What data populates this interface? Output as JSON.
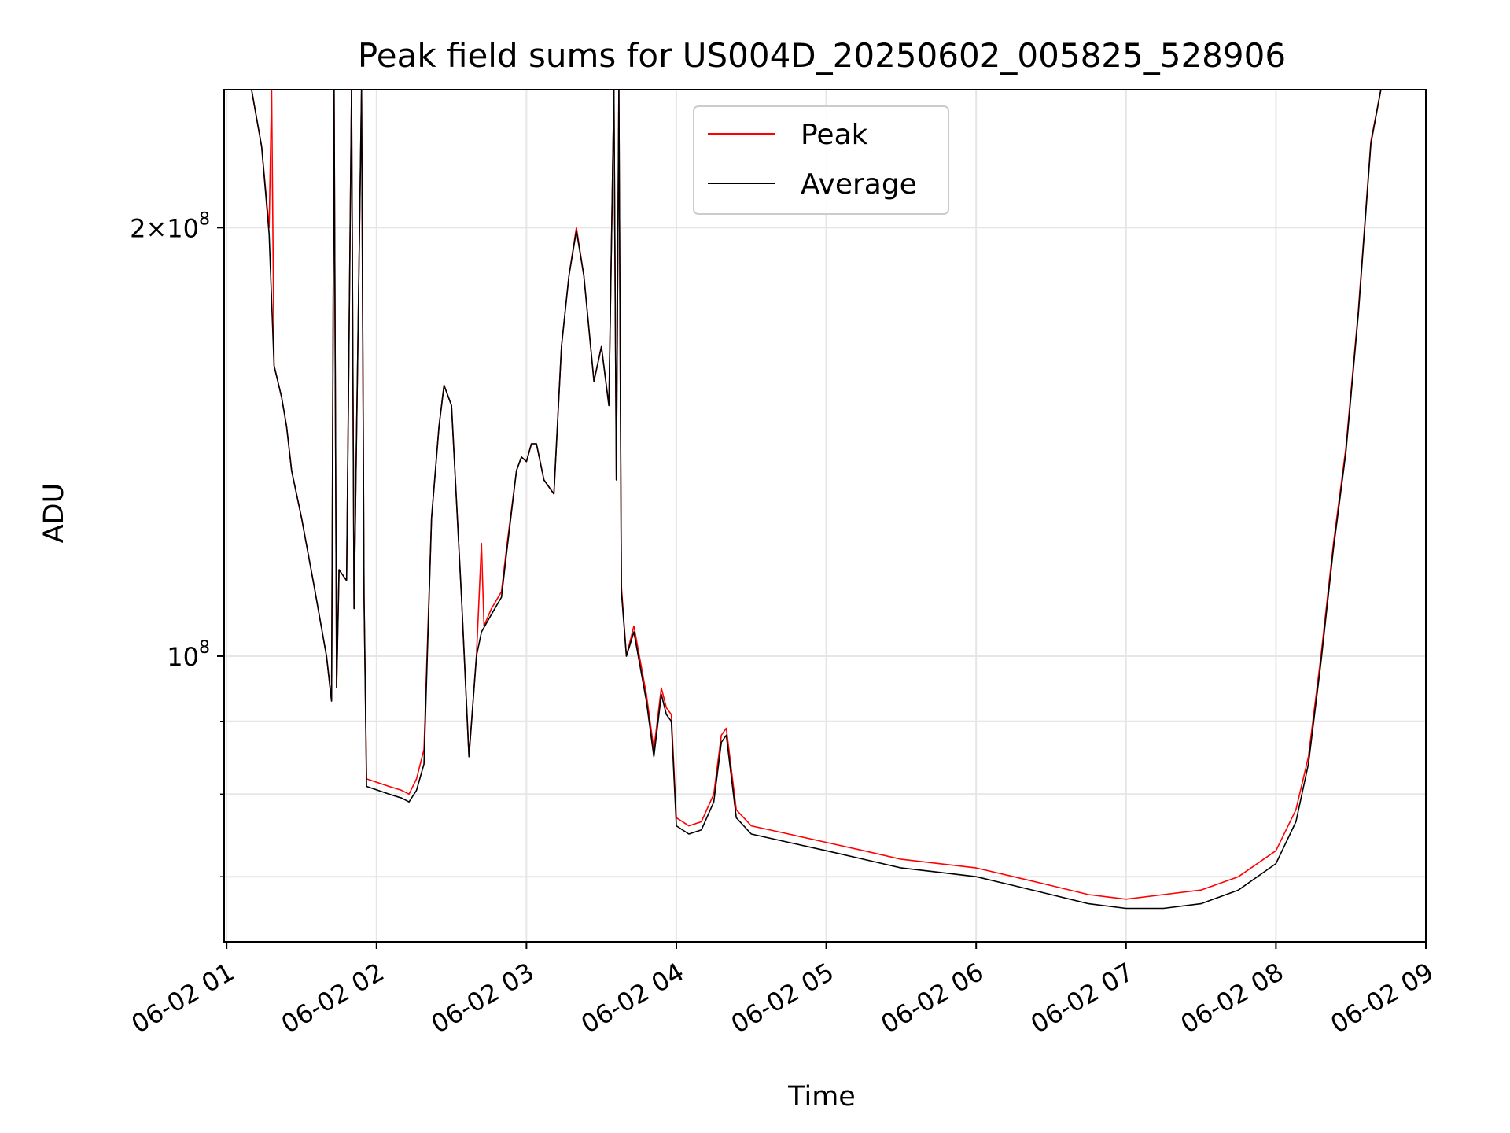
{
  "chart_data": {
    "type": "line",
    "title": "Peak field sums for US004D_20250602_005825_528906",
    "xlabel": "Time",
    "ylabel": "ADU",
    "x_scale": "time",
    "y_scale": "log",
    "xlim": [
      "2025-06-02 00:59",
      "2025-06-02 09:00"
    ],
    "ylim": [
      63000000,
      250000000
    ],
    "x_ticks": [
      "06-02 01",
      "06-02 02",
      "06-02 03",
      "06-02 04",
      "06-02 05",
      "06-02 06",
      "06-02 07",
      "06-02 08",
      "06-02 09"
    ],
    "y_ticks_major": [
      {
        "value": 200000000,
        "base": "2×10",
        "exp": "8"
      },
      {
        "value": 100000000,
        "base": "10",
        "exp": "8"
      }
    ],
    "y_ticks_minor": [
      90000000,
      80000000,
      70000000
    ],
    "grid": true,
    "legend": {
      "placement": "top-center",
      "entries": [
        "Peak",
        "Average"
      ]
    },
    "series": [
      {
        "name": "Peak",
        "color": "#ff0000",
        "points": [
          [
            "01:00",
            250000000
          ],
          [
            "01:10",
            250000000
          ],
          [
            "01:14",
            228000000
          ],
          [
            "01:17",
            200000000
          ],
          [
            "01:18",
            250000000
          ],
          [
            "01:19",
            160000000
          ],
          [
            "01:22",
            152000000
          ],
          [
            "01:24",
            145000000
          ],
          [
            "01:26",
            135000000
          ],
          [
            "01:30",
            125000000
          ],
          [
            "01:35",
            112000000
          ],
          [
            "01:40",
            100000000
          ],
          [
            "01:42",
            93000000
          ],
          [
            "01:43",
            250000000
          ],
          [
            "01:44",
            95000000
          ],
          [
            "01:45",
            115000000
          ],
          [
            "01:48",
            113000000
          ],
          [
            "01:50",
            250000000
          ],
          [
            "01:51",
            108000000
          ],
          [
            "01:54",
            250000000
          ],
          [
            "01:55",
            110000000
          ],
          [
            "01:56",
            82000000
          ],
          [
            "02:05",
            81000000
          ],
          [
            "02:10",
            80500000
          ],
          [
            "02:13",
            80000000
          ],
          [
            "02:16",
            82000000
          ],
          [
            "02:19",
            86000000
          ],
          [
            "02:22",
            125000000
          ],
          [
            "02:25",
            145000000
          ],
          [
            "02:27",
            155000000
          ],
          [
            "02:30",
            150000000
          ],
          [
            "02:34",
            110000000
          ],
          [
            "02:37",
            85000000
          ],
          [
            "02:40",
            100000000
          ],
          [
            "02:42",
            120000000
          ],
          [
            "02:43",
            105000000
          ],
          [
            "02:46",
            108000000
          ],
          [
            "02:50",
            111000000
          ],
          [
            "02:52",
            119000000
          ],
          [
            "02:56",
            135000000
          ],
          [
            "02:58",
            138000000
          ],
          [
            "03:00",
            137000000
          ],
          [
            "03:02",
            141000000
          ],
          [
            "03:04",
            141000000
          ],
          [
            "03:07",
            133000000
          ],
          [
            "03:11",
            130000000
          ],
          [
            "03:14",
            165000000
          ],
          [
            "03:17",
            185000000
          ],
          [
            "03:20",
            200000000
          ],
          [
            "03:23",
            185000000
          ],
          [
            "03:27",
            156000000
          ],
          [
            "03:30",
            165000000
          ],
          [
            "03:33",
            150000000
          ],
          [
            "03:35",
            250000000
          ],
          [
            "03:36",
            133000000
          ],
          [
            "03:37",
            250000000
          ],
          [
            "03:38",
            112000000
          ],
          [
            "03:40",
            100000000
          ],
          [
            "03:43",
            105000000
          ],
          [
            "03:48",
            94000000
          ],
          [
            "03:51",
            86000000
          ],
          [
            "03:54",
            95000000
          ],
          [
            "03:56",
            92000000
          ],
          [
            "03:58",
            91000000
          ],
          [
            "04:00",
            77000000
          ],
          [
            "04:05",
            76000000
          ],
          [
            "04:10",
            76500000
          ],
          [
            "04:15",
            80000000
          ],
          [
            "04:18",
            88000000
          ],
          [
            "04:20",
            89000000
          ],
          [
            "04:24",
            78000000
          ],
          [
            "04:30",
            76000000
          ],
          [
            "04:45",
            75000000
          ],
          [
            "05:00",
            74000000
          ],
          [
            "05:15",
            73000000
          ],
          [
            "05:30",
            72000000
          ],
          [
            "05:45",
            71500000
          ],
          [
            "06:00",
            71000000
          ],
          [
            "06:15",
            70000000
          ],
          [
            "06:30",
            69000000
          ],
          [
            "06:45",
            68000000
          ],
          [
            "07:00",
            67500000
          ],
          [
            "07:15",
            68000000
          ],
          [
            "07:30",
            68500000
          ],
          [
            "07:45",
            70000000
          ],
          [
            "08:00",
            73000000
          ],
          [
            "08:08",
            78000000
          ],
          [
            "08:13",
            85000000
          ],
          [
            "08:18",
            100000000
          ],
          [
            "08:23",
            120000000
          ],
          [
            "08:28",
            140000000
          ],
          [
            "08:33",
            175000000
          ],
          [
            "08:38",
            230000000
          ],
          [
            "08:42",
            250000000
          ],
          [
            "09:00",
            250000000
          ]
        ]
      },
      {
        "name": "Average",
        "color": "#000000",
        "points": [
          [
            "01:00",
            250000000
          ],
          [
            "01:10",
            250000000
          ],
          [
            "01:14",
            228000000
          ],
          [
            "01:17",
            198000000
          ],
          [
            "01:19",
            160000000
          ],
          [
            "01:22",
            152000000
          ],
          [
            "01:24",
            145000000
          ],
          [
            "01:26",
            135000000
          ],
          [
            "01:30",
            125000000
          ],
          [
            "01:35",
            112000000
          ],
          [
            "01:40",
            100000000
          ],
          [
            "01:42",
            93000000
          ],
          [
            "01:43",
            250000000
          ],
          [
            "01:44",
            95000000
          ],
          [
            "01:45",
            115000000
          ],
          [
            "01:48",
            113000000
          ],
          [
            "01:50",
            250000000
          ],
          [
            "01:51",
            108000000
          ],
          [
            "01:54",
            250000000
          ],
          [
            "01:55",
            110000000
          ],
          [
            "01:56",
            81000000
          ],
          [
            "02:05",
            80000000
          ],
          [
            "02:10",
            79500000
          ],
          [
            "02:13",
            79000000
          ],
          [
            "02:16",
            80500000
          ],
          [
            "02:19",
            84000000
          ],
          [
            "02:22",
            125000000
          ],
          [
            "02:25",
            145000000
          ],
          [
            "02:27",
            155000000
          ],
          [
            "02:30",
            150000000
          ],
          [
            "02:34",
            110000000
          ],
          [
            "02:37",
            85000000
          ],
          [
            "02:40",
            100000000
          ],
          [
            "02:42",
            104000000
          ],
          [
            "02:46",
            107000000
          ],
          [
            "02:50",
            110000000
          ],
          [
            "02:52",
            118000000
          ],
          [
            "02:56",
            135000000
          ],
          [
            "02:58",
            138000000
          ],
          [
            "03:00",
            137000000
          ],
          [
            "03:02",
            141000000
          ],
          [
            "03:04",
            141000000
          ],
          [
            "03:07",
            133000000
          ],
          [
            "03:11",
            130000000
          ],
          [
            "03:14",
            165000000
          ],
          [
            "03:17",
            185000000
          ],
          [
            "03:20",
            199000000
          ],
          [
            "03:23",
            185000000
          ],
          [
            "03:27",
            156000000
          ],
          [
            "03:30",
            165000000
          ],
          [
            "03:33",
            150000000
          ],
          [
            "03:35",
            250000000
          ],
          [
            "03:36",
            133000000
          ],
          [
            "03:37",
            250000000
          ],
          [
            "03:38",
            111000000
          ],
          [
            "03:40",
            100000000
          ],
          [
            "03:43",
            104000000
          ],
          [
            "03:48",
            93000000
          ],
          [
            "03:51",
            85000000
          ],
          [
            "03:54",
            94000000
          ],
          [
            "03:56",
            91000000
          ],
          [
            "03:58",
            90000000
          ],
          [
            "04:00",
            76000000
          ],
          [
            "04:05",
            75000000
          ],
          [
            "04:10",
            75500000
          ],
          [
            "04:15",
            79000000
          ],
          [
            "04:18",
            87000000
          ],
          [
            "04:20",
            88000000
          ],
          [
            "04:24",
            77000000
          ],
          [
            "04:30",
            75000000
          ],
          [
            "04:45",
            74000000
          ],
          [
            "05:00",
            73000000
          ],
          [
            "05:15",
            72000000
          ],
          [
            "05:30",
            71000000
          ],
          [
            "05:45",
            70500000
          ],
          [
            "06:00",
            70000000
          ],
          [
            "06:15",
            69000000
          ],
          [
            "06:30",
            68000000
          ],
          [
            "06:45",
            67000000
          ],
          [
            "07:00",
            66500000
          ],
          [
            "07:15",
            66500000
          ],
          [
            "07:30",
            67000000
          ],
          [
            "07:45",
            68500000
          ],
          [
            "08:00",
            71500000
          ],
          [
            "08:08",
            76500000
          ],
          [
            "08:13",
            84000000
          ],
          [
            "08:18",
            99000000
          ],
          [
            "08:23",
            119000000
          ],
          [
            "08:28",
            139000000
          ],
          [
            "08:33",
            174000000
          ],
          [
            "08:38",
            229000000
          ],
          [
            "08:42",
            250000000
          ],
          [
            "09:00",
            250000000
          ]
        ]
      }
    ]
  }
}
